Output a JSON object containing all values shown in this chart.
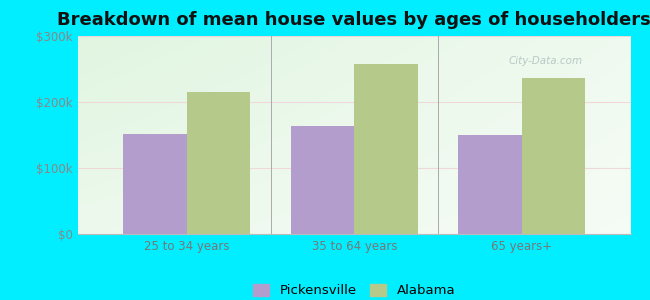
{
  "title": "Breakdown of mean house values by ages of householders",
  "categories": [
    "25 to 34 years",
    "35 to 64 years",
    "65 years+"
  ],
  "pickensville": [
    152000,
    163000,
    150000
  ],
  "alabama": [
    215000,
    258000,
    237000
  ],
  "ylim": [
    0,
    300000
  ],
  "yticks": [
    0,
    100000,
    200000,
    300000
  ],
  "ytick_labels": [
    "$0",
    "$100k",
    "$200k",
    "$300k"
  ],
  "bar_color_pickensville": "#b39dcc",
  "bar_color_alabama": "#b5c98a",
  "figure_bg": "#00eeff",
  "plot_bg": "#e8f5e0",
  "legend_pickensville": "Pickensville",
  "legend_alabama": "Alabama",
  "bar_width": 0.38,
  "title_fontsize": 13,
  "tick_fontsize": 8.5,
  "legend_fontsize": 9.5,
  "watermark": "City-Data.com"
}
